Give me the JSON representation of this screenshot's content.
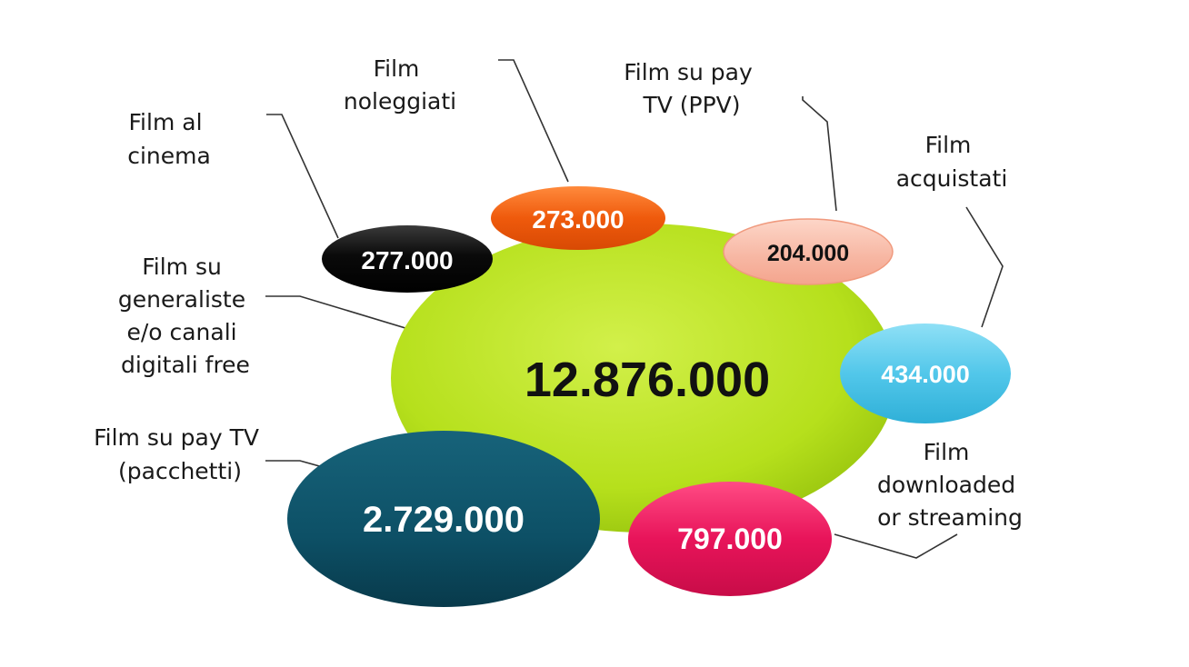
{
  "bubbles": {
    "main": {
      "label": [
        "Film su",
        "generaliste",
        "e/o canali",
        "digitali free"
      ],
      "value": "12.876.000",
      "color": "#b6e01c",
      "text_color": "#111111"
    },
    "cinema": {
      "label": [
        "Film al",
        "cinema"
      ],
      "value": "277.000",
      "color": "#0a0a0a",
      "text_color": "#ffffff"
    },
    "noleggiati": {
      "label": [
        "Film",
        "noleggiati"
      ],
      "value": "273.000",
      "color": "#ef5a0c",
      "text_color": "#ffffff"
    },
    "ppv": {
      "label": [
        "Film su pay",
        "TV (PPV)"
      ],
      "value": "204.000",
      "color": "#f7b6a2",
      "text_color": "#111111"
    },
    "acquistati": {
      "label": [
        "Film",
        "acquistati"
      ],
      "value": "434.000",
      "color": "#52c7ea",
      "text_color": "#ffffff"
    },
    "pacchetti": {
      "label": [
        "Film su pay TV",
        "(pacchetti)"
      ],
      "value": "2.729.000",
      "color": "#0d5066",
      "text_color": "#ffffff"
    },
    "download": {
      "label": [
        "Film",
        "downloaded",
        "or streaming"
      ],
      "value": "797.000",
      "color": "#e8145a",
      "text_color": "#ffffff"
    }
  }
}
